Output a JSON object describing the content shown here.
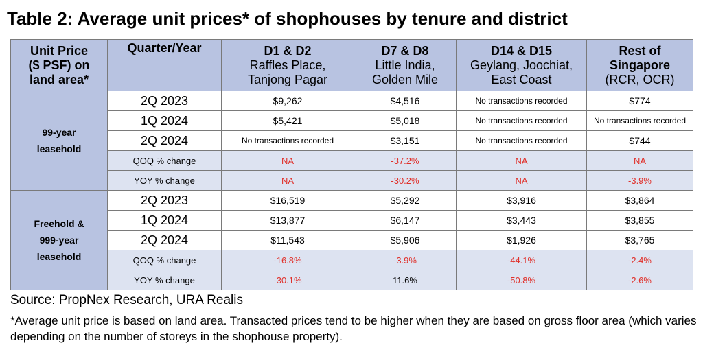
{
  "title": "Table 2: Average unit prices* of shophouses by tenure and district",
  "header": {
    "col0": [
      "Unit Price",
      "($ PSF) on",
      "land area*"
    ],
    "col1": "Quarter/Year",
    "districts": [
      {
        "code": "D1 & D2",
        "line2": "Raffles Place,",
        "line3": "Tanjong Pagar"
      },
      {
        "code": "D7 & D8",
        "line2": "Little India,",
        "line3": "Golden Mile"
      },
      {
        "code": "D14 & D15",
        "line2": "Geylang, Joochiat,",
        "line3": "East Coast"
      },
      {
        "code": "Rest of",
        "line2": "Singapore",
        "line3": "(RCR, OCR)"
      }
    ]
  },
  "groups": [
    {
      "label": [
        "99-year",
        "leasehold"
      ],
      "rows": [
        {
          "period": "2Q 2023",
          "values": [
            "$9,262",
            "$4,516",
            "No transactions recorded",
            "$774"
          ]
        },
        {
          "period": "1Q 2024",
          "values": [
            "$5,421",
            "$5,018",
            "No transactions recorded",
            "No transactions recorded"
          ]
        },
        {
          "period": "2Q 2024",
          "values": [
            "No transactions recorded",
            "$3,151",
            "No transactions recorded",
            "$744"
          ]
        },
        {
          "period": "QOQ % change",
          "values": [
            "NA",
            "-37.2%",
            "NA",
            "NA"
          ]
        },
        {
          "period": "YOY % change",
          "values": [
            "NA",
            "-30.2%",
            "NA",
            "-3.9%"
          ]
        }
      ]
    },
    {
      "label": [
        "Freehold &",
        "999-year",
        "leasehold"
      ],
      "rows": [
        {
          "period": "2Q 2023",
          "values": [
            "$16,519",
            "$5,292",
            "$3,916",
            "$3,864"
          ]
        },
        {
          "period": "1Q 2024",
          "values": [
            "$13,877",
            "$6,147",
            "$3,443",
            "$3,855"
          ]
        },
        {
          "period": "2Q 2024",
          "values": [
            "$11,543",
            "$5,906",
            "$1,926",
            "$3,765"
          ]
        },
        {
          "period": "QOQ % change",
          "values": [
            "-16.8%",
            "-3.9%",
            "-44.1%",
            "-2.4%"
          ]
        },
        {
          "period": "YOY % change",
          "values": [
            "-30.1%",
            "11.6%",
            "-50.8%",
            "-2.6%"
          ]
        }
      ]
    }
  ],
  "source": "Source: PropNex Research, URA Realis",
  "footnote": "*Average unit price is based on land area. Transacted prices tend to be higher when they are based on gross floor area (which varies depending on the number of storeys in the shophouse property).",
  "colors": {
    "header_bg": "#b8c3e1",
    "pct_row_bg": "#dde3f1",
    "negative": "#e0302a",
    "border": "#7a7a7a"
  }
}
